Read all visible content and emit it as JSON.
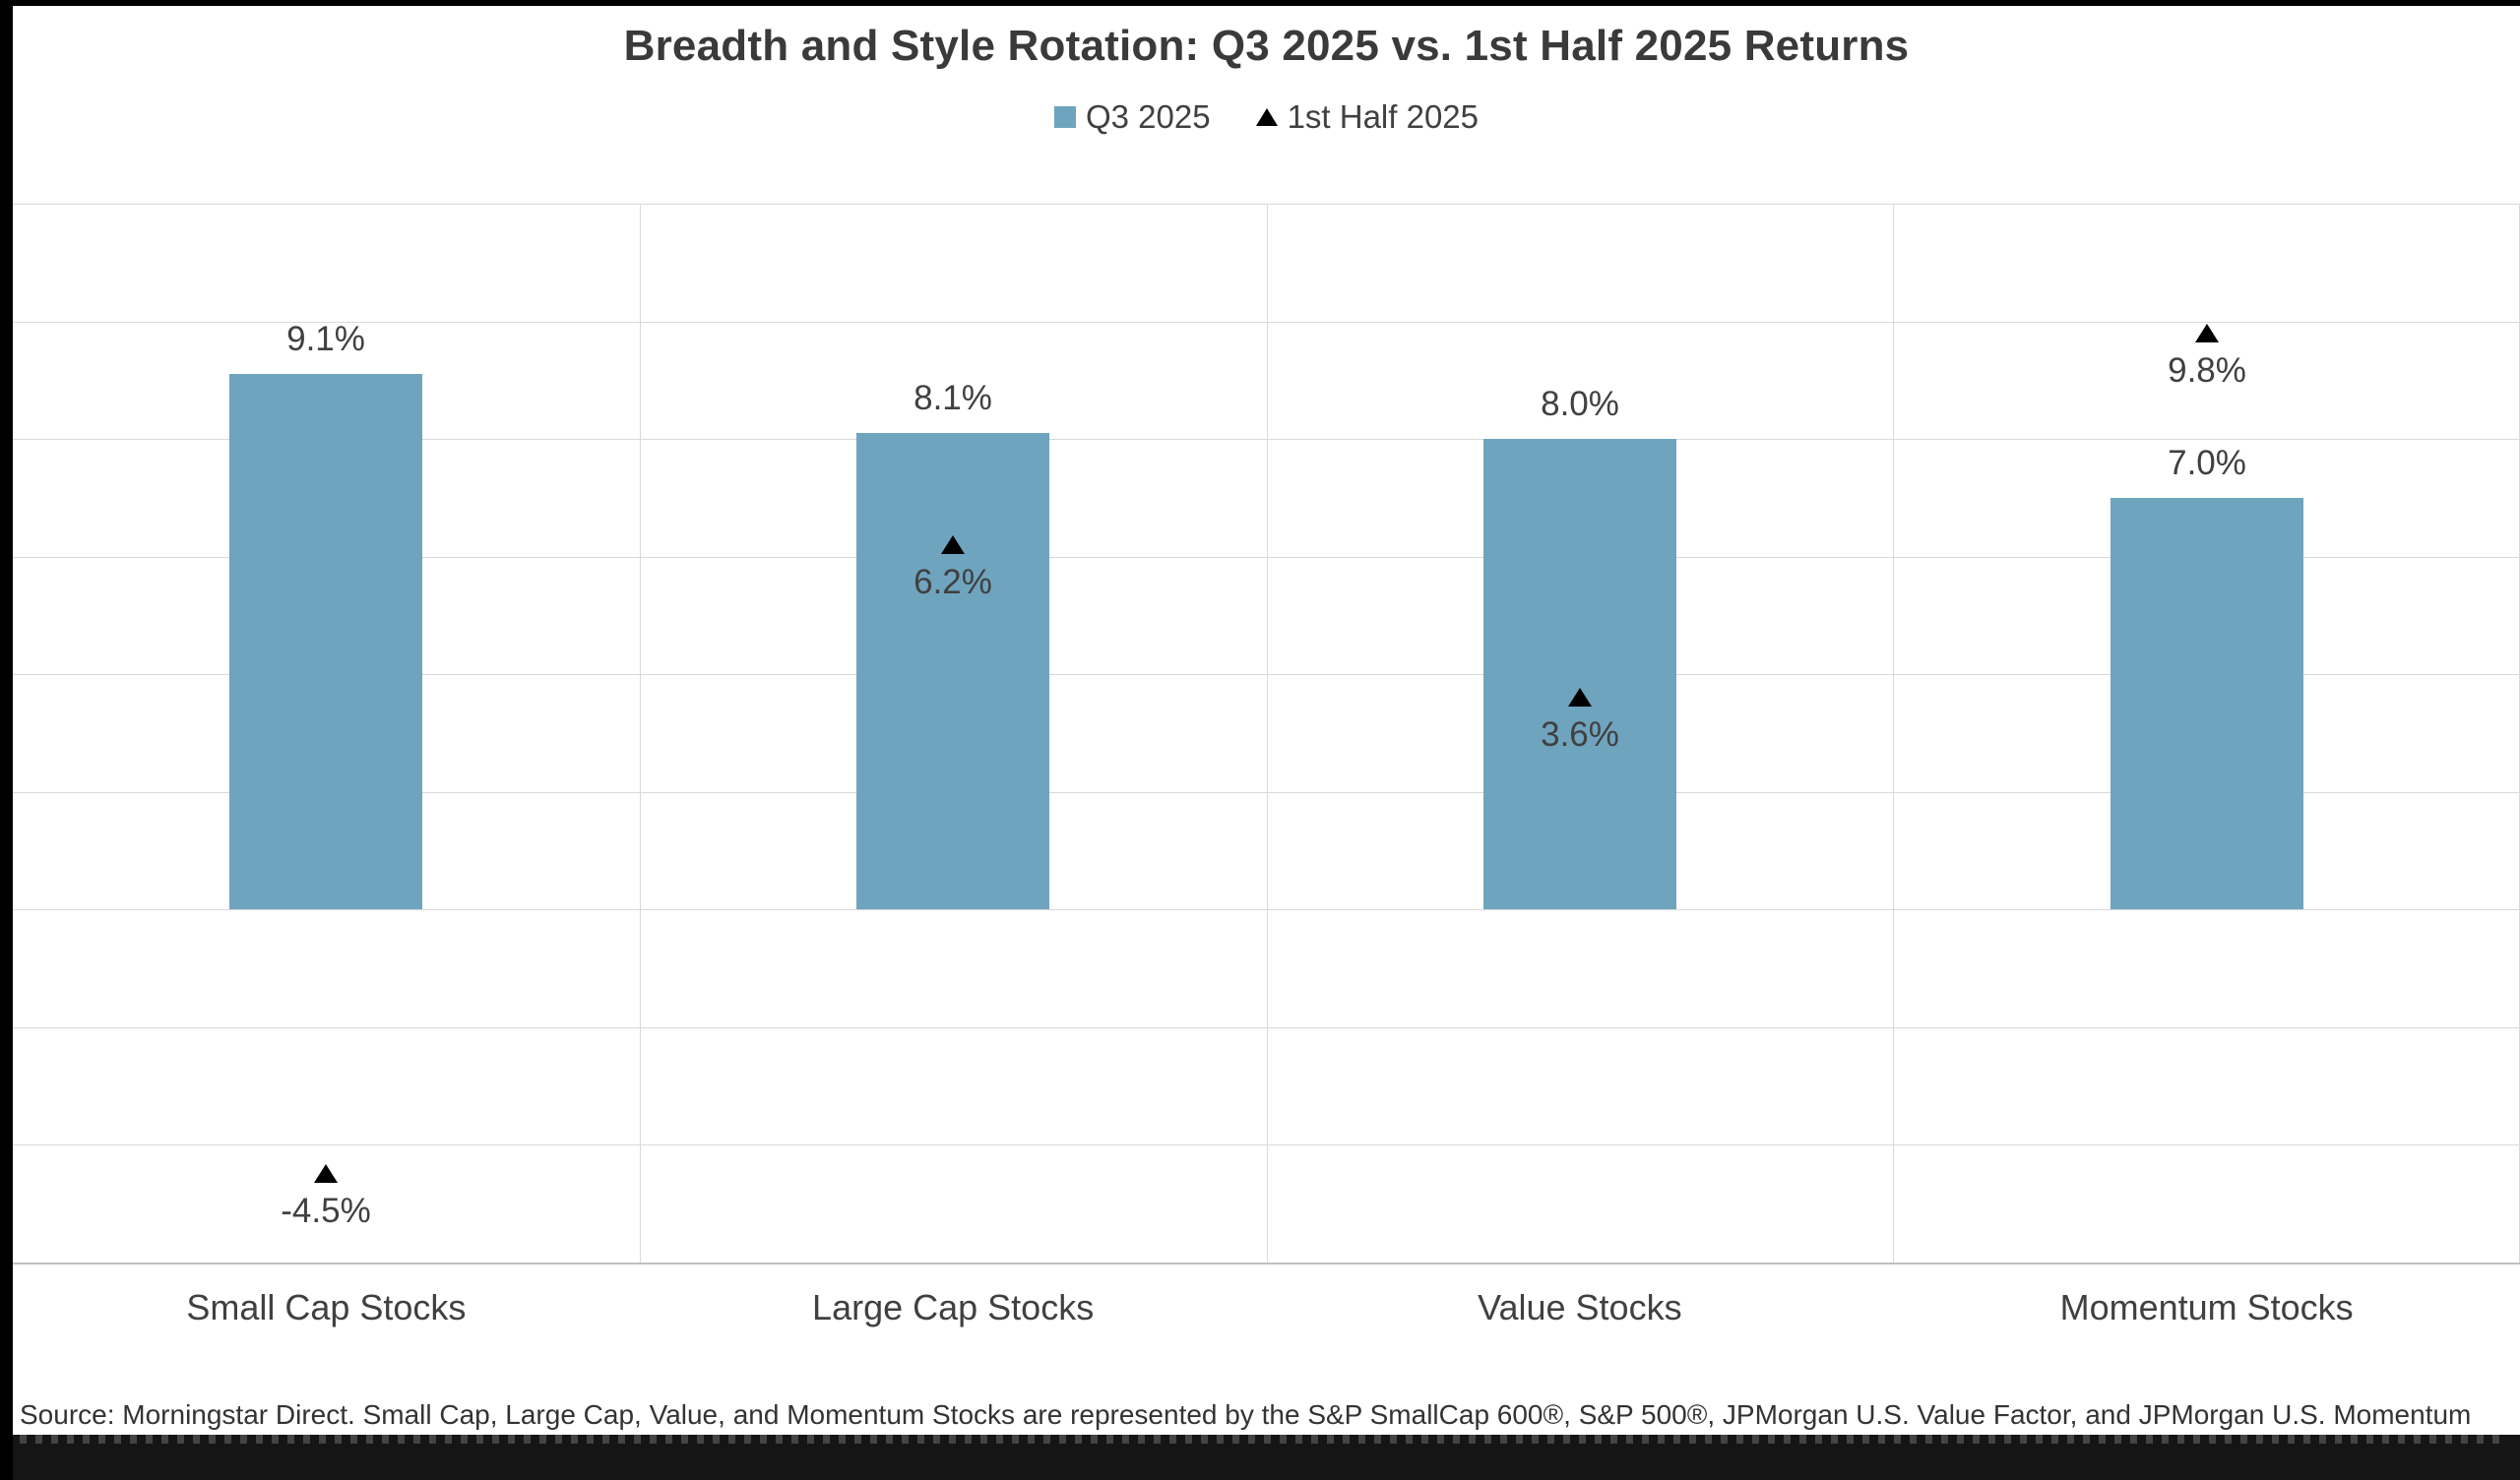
{
  "chart_data": {
    "type": "bar",
    "title": "Breadth and Style Rotation: Q3 2025 vs. 1st Half 2025 Returns",
    "categories": [
      "Small Cap Stocks",
      "Large Cap Stocks",
      "Value Stocks",
      "Momentum Stocks"
    ],
    "series": [
      {
        "name": "Q3 2025",
        "marker": "bar",
        "color": "#6FA4BF",
        "values": [
          9.1,
          8.1,
          8.0,
          7.0
        ],
        "labels": [
          "9.1%",
          "8.1%",
          "8.0%",
          "7.0%"
        ]
      },
      {
        "name": "1st Half 2025",
        "marker": "triangle",
        "color": "#000000",
        "values": [
          -4.5,
          6.2,
          3.6,
          9.8
        ],
        "labels": [
          "-4.5%",
          "6.2%",
          "3.6%",
          "9.8%"
        ]
      }
    ],
    "ylim": [
      -6,
      12
    ],
    "grid_step": 2,
    "grid": true,
    "y_axis_labels_visible": false,
    "legend_position": "top"
  },
  "footnote": "Source: Morningstar Direct. Small Cap, Large Cap, Value, and Momentum Stocks are represented by the S&P SmallCap 600®, S&P 500®, JPMorgan U.S. Value Factor, and JPMorgan U.S. Momentum",
  "colors": {
    "bar": "#6FA4BF",
    "marker": "#000000",
    "grid": "#d9d9d9",
    "title_text": "#3a3a3a",
    "label_text": "#404040"
  }
}
